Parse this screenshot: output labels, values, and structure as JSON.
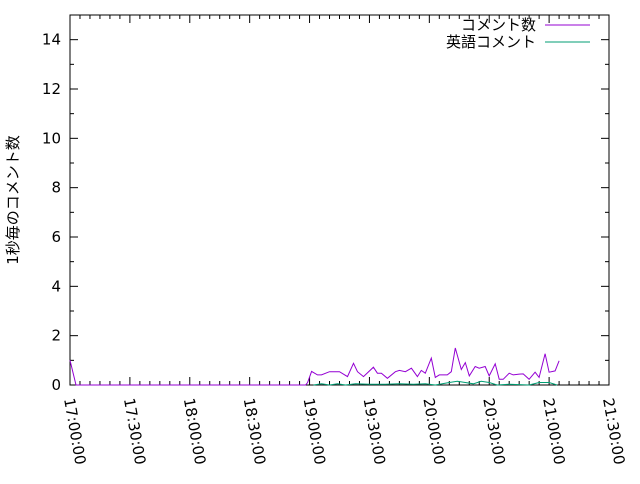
{
  "chart_data": {
    "type": "line",
    "title": "",
    "xlabel": "",
    "ylabel": "1秒毎のコメント数",
    "xlim": [
      "17:00:00",
      "21:30:00"
    ],
    "ylim": [
      0,
      15
    ],
    "x_ticks": [
      "17:00:00",
      "17:30:00",
      "18:00:00",
      "18:30:00",
      "19:00:00",
      "19:30:00",
      "20:00:00",
      "20:30:00",
      "21:00:00",
      "21:30:00"
    ],
    "y_ticks": [
      "0",
      "2",
      "4",
      "6",
      "8",
      "10",
      "12",
      "14"
    ],
    "grid": false,
    "legend_position": "top-right",
    "series": [
      {
        "name": "コメント数",
        "color": "#9400d3",
        "points": [
          [
            "17:00",
            1.0
          ],
          [
            "17:03",
            0
          ],
          [
            "18:58",
            0
          ],
          [
            "18:59",
            0.1
          ],
          [
            "19:01",
            0.55
          ],
          [
            "19:04",
            0.41
          ],
          [
            "19:06",
            0.41
          ],
          [
            "19:10",
            0.54
          ],
          [
            "19:15",
            0.54
          ],
          [
            "19:19",
            0.34
          ],
          [
            "19:22",
            0.88
          ],
          [
            "19:24",
            0.54
          ],
          [
            "19:27",
            0.34
          ],
          [
            "19:32",
            0.72
          ],
          [
            "19:34",
            0.48
          ],
          [
            "19:36",
            0.48
          ],
          [
            "19:39",
            0.27
          ],
          [
            "19:43",
            0.54
          ],
          [
            "19:45",
            0.59
          ],
          [
            "19:48",
            0.54
          ],
          [
            "19:51",
            0.68
          ],
          [
            "19:54",
            0.34
          ],
          [
            "19:56",
            0.59
          ],
          [
            "19:58",
            0.48
          ],
          [
            "20:01",
            1.09
          ],
          [
            "20:03",
            0.31
          ],
          [
            "20:05",
            0.41
          ],
          [
            "20:09",
            0.41
          ],
          [
            "20:11",
            0.54
          ],
          [
            "20:13",
            1.5
          ],
          [
            "20:16",
            0.63
          ],
          [
            "20:18",
            0.91
          ],
          [
            "20:20",
            0.37
          ],
          [
            "20:23",
            0.75
          ],
          [
            "20:25",
            0.68
          ],
          [
            "20:28",
            0.75
          ],
          [
            "20:30",
            0.37
          ],
          [
            "20:33",
            0.86
          ],
          [
            "20:35",
            0.23
          ],
          [
            "20:37",
            0.23
          ],
          [
            "20:40",
            0.48
          ],
          [
            "20:42",
            0.41
          ],
          [
            "20:45",
            0.44
          ],
          [
            "20:47",
            0.45
          ],
          [
            "20:50",
            0.23
          ],
          [
            "20:53",
            0.52
          ],
          [
            "20:55",
            0.31
          ],
          [
            "20:58",
            1.27
          ],
          [
            "21:00",
            0.52
          ],
          [
            "21:03",
            0.57
          ],
          [
            "21:05",
            0.98
          ]
        ]
      },
      {
        "name": "英語コメント",
        "color": "#009e73",
        "points": [
          [
            "19:02",
            0
          ],
          [
            "19:06",
            0.05
          ],
          [
            "19:10",
            0
          ],
          [
            "19:14",
            0.05
          ],
          [
            "19:18",
            0
          ],
          [
            "19:23",
            0.05
          ],
          [
            "19:30",
            0.03
          ],
          [
            "19:38",
            0.03
          ],
          [
            "19:45",
            0.05
          ],
          [
            "19:52",
            0.03
          ],
          [
            "19:58",
            0.05
          ],
          [
            "20:03",
            0
          ],
          [
            "20:10",
            0.1
          ],
          [
            "20:14",
            0.15
          ],
          [
            "20:18",
            0.1
          ],
          [
            "20:22",
            0.05
          ],
          [
            "20:26",
            0.15
          ],
          [
            "20:30",
            0.1
          ],
          [
            "20:34",
            0
          ],
          [
            "20:40",
            0.03
          ],
          [
            "20:50",
            0
          ],
          [
            "20:55",
            0.1
          ],
          [
            "21:00",
            0.1
          ],
          [
            "21:04",
            0
          ]
        ]
      }
    ]
  }
}
